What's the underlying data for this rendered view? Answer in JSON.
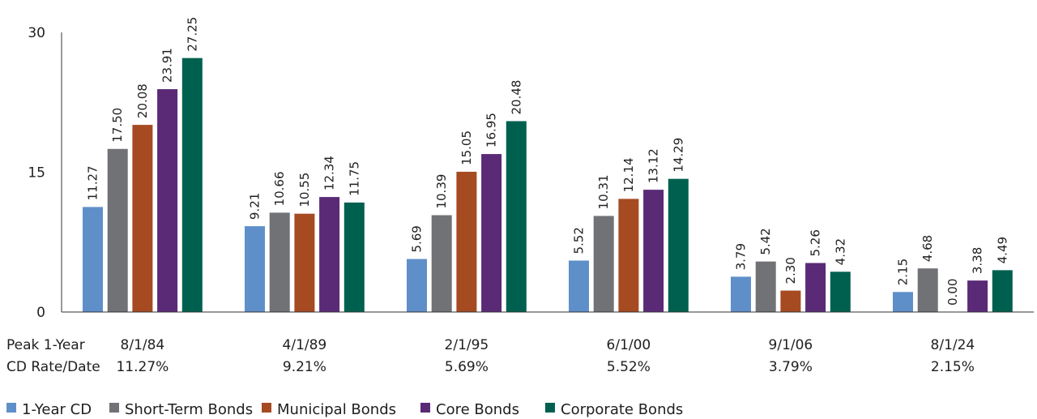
{
  "chart_data": {
    "type": "bar",
    "title": "",
    "xlabel": "",
    "ylabel": "",
    "ylim": [
      0,
      30
    ],
    "yticks": [
      "0",
      "15",
      "30"
    ],
    "row_header_line1": "Peak 1-Year",
    "row_header_line2": "CD Rate/Date",
    "categories": [
      "8/1/84",
      "4/1/89",
      "2/1/95",
      "6/1/00",
      "9/1/06",
      "8/1/24"
    ],
    "category_rates": [
      "11.27%",
      "9.21%",
      "5.69%",
      "5.52%",
      "3.79%",
      "2.15%"
    ],
    "series": [
      {
        "name": "1-Year CD",
        "color": "#5f8fc9",
        "values": [
          11.27,
          9.21,
          5.69,
          5.52,
          3.79,
          2.15
        ],
        "labels": [
          "11.27",
          "9.21",
          "5.69",
          "5.52",
          "3.79",
          "2.15"
        ]
      },
      {
        "name": "Short-Term Bonds",
        "color": "#707276",
        "values": [
          17.5,
          10.66,
          10.39,
          10.31,
          5.42,
          4.68
        ],
        "labels": [
          "17.50",
          "10.66",
          "10.39",
          "10.31",
          "5.42",
          "4.68"
        ]
      },
      {
        "name": "Municipal Bonds",
        "color": "#a64a22",
        "values": [
          20.08,
          10.55,
          15.05,
          12.14,
          2.3,
          0.0
        ],
        "labels": [
          "20.08",
          "10.55",
          "15.05",
          "12.14",
          "2.30",
          "0.00"
        ]
      },
      {
        "name": "Core Bonds",
        "color": "#5a2a77",
        "values": [
          23.91,
          12.34,
          16.95,
          13.12,
          5.26,
          3.38
        ],
        "labels": [
          "23.91",
          "12.34",
          "16.95",
          "13.12",
          "5.26",
          "3.38"
        ]
      },
      {
        "name": "Corporate Bonds",
        "color": "#00604f",
        "values": [
          27.25,
          11.75,
          20.48,
          14.29,
          4.32,
          4.49
        ],
        "labels": [
          "27.25",
          "11.75",
          "20.48",
          "14.29",
          "4.32",
          "4.49"
        ]
      }
    ],
    "legend": "bottom-left",
    "grid": false
  }
}
